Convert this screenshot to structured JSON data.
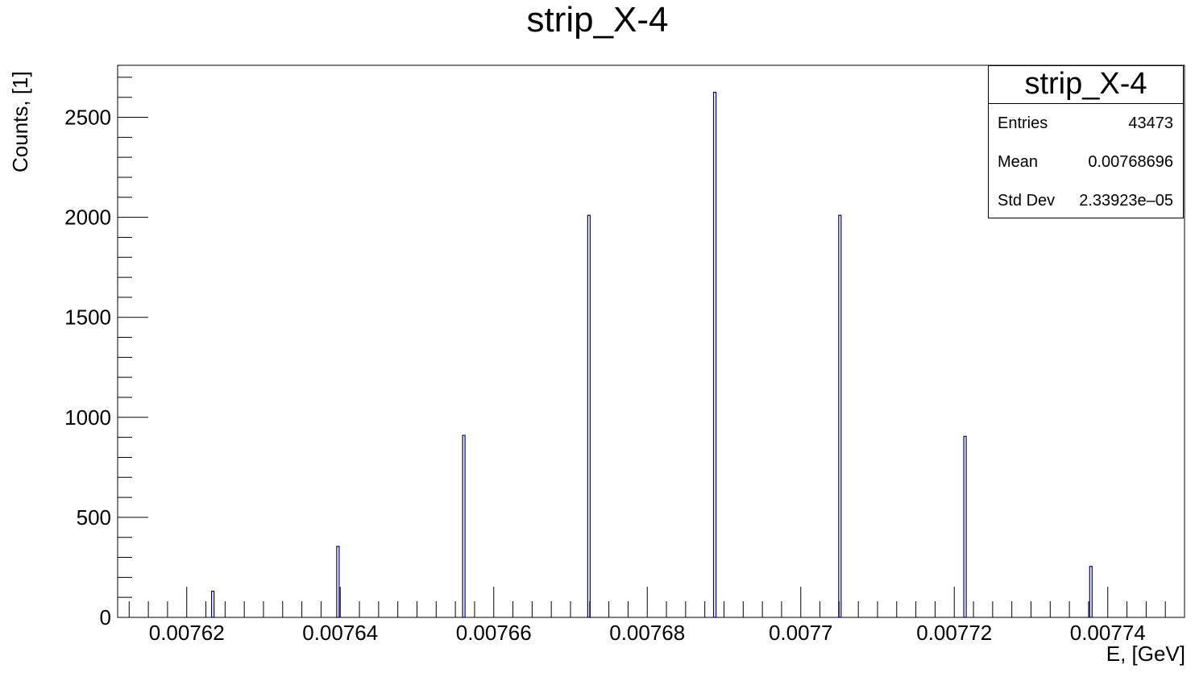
{
  "chart_data": {
    "type": "bar",
    "title": "strip_X-4",
    "xlabel": "E, [GeV]",
    "ylabel": "Counts, [1]",
    "xlim": [
      0.007611,
      0.00775
    ],
    "ylim": [
      0,
      2760
    ],
    "x_ticks": [
      "0.00762",
      "0.00764",
      "0.00766",
      "0.00768",
      "0.0077",
      "0.00772",
      "0.00774"
    ],
    "x_tick_values": [
      0.00762,
      0.00764,
      0.00766,
      0.00768,
      0.0077,
      0.00772,
      0.00774
    ],
    "y_ticks": [
      "0",
      "500",
      "1000",
      "1500",
      "2000",
      "2500"
    ],
    "y_tick_values": [
      0,
      500,
      1000,
      1500,
      2000,
      2500
    ],
    "x": [
      0.0076234,
      0.0076397,
      0.0076561,
      0.0076724,
      0.0076888,
      0.0077051,
      0.0077214,
      0.0077378
    ],
    "values": [
      131,
      355,
      910,
      2010,
      2625,
      2010,
      905,
      255
    ],
    "series_color": "#000080",
    "grid": false,
    "legend": "none",
    "stats": {
      "title": "strip_X-4",
      "rows": [
        {
          "key": "Entries",
          "value": "43473"
        },
        {
          "key": "Mean",
          "value": "0.00768696"
        },
        {
          "key": "Std Dev",
          "value": "2.33923e–05"
        }
      ]
    }
  }
}
